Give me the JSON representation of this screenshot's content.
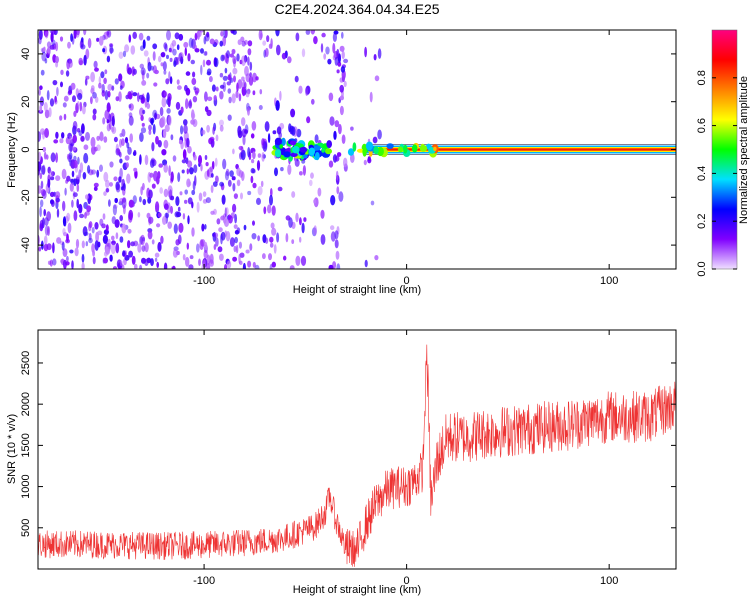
{
  "title": "C2E4.2024.364.04.34.E25",
  "chart_data": [
    {
      "type": "heatmap",
      "xlabel": "Height of straight line (km)",
      "ylabel": "Frequency (Hz)",
      "xlim": [
        -182,
        133
      ],
      "ylim": [
        -50,
        50
      ],
      "xticks": [
        -100,
        0,
        100
      ],
      "yticks": [
        -40,
        -20,
        0,
        20,
        40
      ],
      "colorbar": {
        "label": "Normalized spectral amplitude",
        "range": [
          0,
          1
        ],
        "ticks": [
          "0.0",
          "0.2",
          "0.4",
          "0.6",
          "0.8"
        ],
        "tick_values": [
          0.0,
          0.2,
          0.4,
          0.6,
          0.8
        ],
        "colors": [
          "#f0e0ff",
          "#8000ff",
          "#0000ff",
          "#00e0ff",
          "#00ff00",
          "#ffff00",
          "#ff8000",
          "#ff0000",
          "#ff0080"
        ]
      },
      "features": {
        "noise_region_x": [
          -182,
          -30
        ],
        "signal_line_x": [
          -20,
          133
        ],
        "signal_line_freq_hz": 0,
        "signal_line_peak": 0.85,
        "cluster_x": [
          -66,
          -38
        ],
        "cluster_peak": 0.45
      }
    },
    {
      "type": "line",
      "xlabel": "Height of straight line (km)",
      "ylabel": "SNR (10 * v/v)",
      "xlim": [
        -182,
        133
      ],
      "ylim": [
        0,
        2900
      ],
      "xticks": [
        -100,
        0,
        100
      ],
      "yticks": [
        500,
        1000,
        1500,
        2000,
        2500
      ],
      "color": "#ee3333",
      "series": [
        {
          "x": [
            -182,
            -160,
            -140,
            -120,
            -100,
            -80,
            -70,
            -60,
            -50,
            -45,
            -40,
            -38,
            -35,
            -30,
            -25,
            -20,
            -15,
            -10,
            -5,
            0,
            5,
            8,
            10,
            12,
            15,
            20,
            30,
            40,
            60,
            80,
            100,
            120,
            133
          ],
          "y": [
            300,
            300,
            290,
            280,
            290,
            320,
            340,
            380,
            470,
            520,
            700,
            900,
            600,
            250,
            200,
            550,
            800,
            950,
            1000,
            1000,
            1100,
            1200,
            2700,
            800,
            1300,
            1600,
            1600,
            1650,
            1700,
            1750,
            1850,
            1850,
            2000
          ]
        }
      ]
    }
  ]
}
